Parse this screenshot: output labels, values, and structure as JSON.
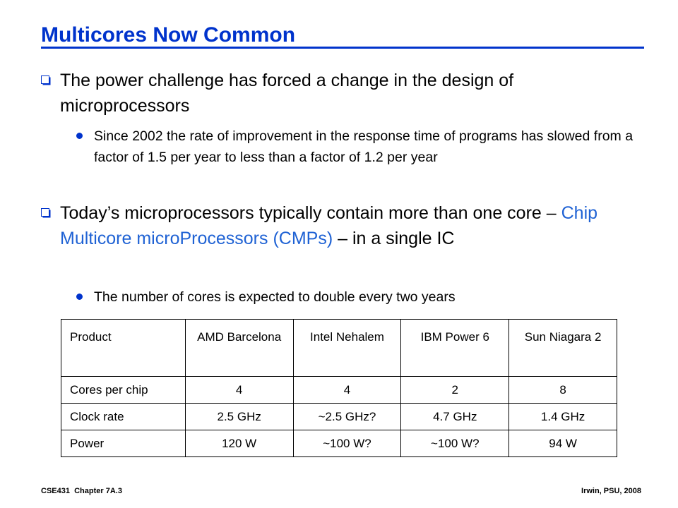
{
  "slide": {
    "title": "Multicores Now Common",
    "bullets": [
      {
        "text": "The power challenge has forced a change in the design of microprocessors",
        "subbullets": [
          "Since 2002 the rate of improvement in the response time of programs has slowed from a factor of 1.5 per year to less than a factor of 1.2 per year"
        ]
      },
      {
        "text_before": "Today’s microprocessors typically contain more than one core – ",
        "text_highlight": "Chip Multicore microProcessors (CMPs)",
        "text_after": " – in a single IC",
        "subbullets": [
          "The number of cores is expected to double every two years"
        ]
      }
    ]
  },
  "table": {
    "headers": [
      "Product",
      "AMD Barcelona",
      "Intel Nehalem",
      "IBM Power 6",
      "Sun Niagara 2"
    ],
    "rows": [
      [
        "Cores per chip",
        "4",
        "4",
        "2",
        "8"
      ],
      [
        "Clock rate",
        "2.5 GHz",
        "~2.5 GHz?",
        "4.7 GHz",
        "1.4 GHz"
      ],
      [
        "Power",
        "120 W",
        "~100 W?",
        "~100 W?",
        "94 W"
      ]
    ]
  },
  "footer": {
    "left": "CSE431  Chapter 7A.3",
    "right": "Irwin, PSU, 2008"
  },
  "colors": {
    "title": "#0033cc",
    "highlight": "#1f62d4",
    "bullet": "#0033cc"
  }
}
